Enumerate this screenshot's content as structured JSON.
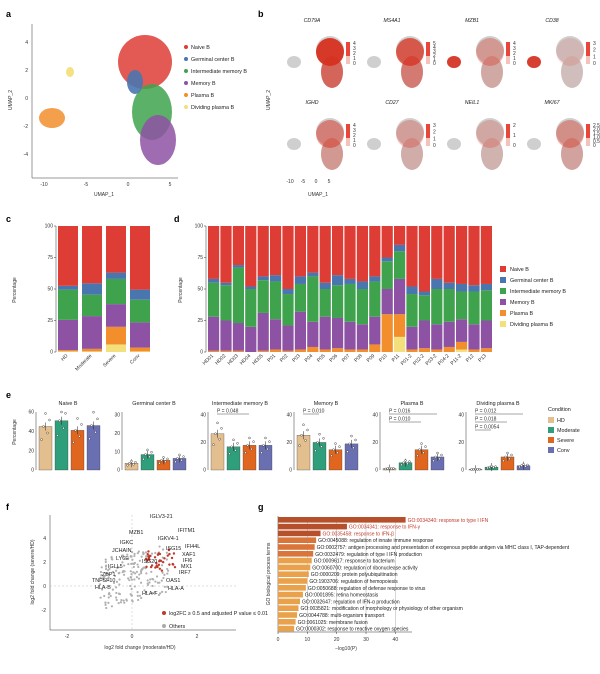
{
  "panel_labels": [
    "a",
    "b",
    "c",
    "d",
    "e",
    "f",
    "g"
  ],
  "colors": {
    "naive": "#dd3d35",
    "germinal": "#4a76b0",
    "intermediate": "#3fa34d",
    "memory": "#8e52a5",
    "plasma": "#f28e2b",
    "dividing": "#f3df7c",
    "hd": "#e3be8e",
    "moderate": "#2f9e7a",
    "severe": "#e0651f",
    "conv": "#6a6fb2",
    "go_red": "#c0392b"
  },
  "panel_a": {
    "xlabel": "UMAP_1",
    "ylabel": "UMAP_2",
    "xticks": [
      "-10",
      "-5",
      "0",
      "5"
    ],
    "yticks": [
      "4",
      "2",
      "0",
      "-2",
      "-4"
    ],
    "legend": [
      "Naive B",
      "Germinal center B",
      "Intermediate memory B",
      "Memory B",
      "Plasma B",
      "Dividing plasma B"
    ]
  },
  "panel_b": {
    "ylabel": "UMAP_2",
    "xlabel": "UMAP_1",
    "xticks": [
      "-10",
      "-5",
      "0",
      "5"
    ],
    "genes": [
      {
        "name": "CD79A",
        "scale": [
          "4",
          "3",
          "2",
          "1",
          "0"
        ]
      },
      {
        "name": "MS4A1",
        "scale": [
          "5",
          "4",
          "3",
          "2",
          "1",
          "0"
        ]
      },
      {
        "name": "MZB1",
        "scale": [
          "4",
          "3",
          "2",
          "1",
          "0"
        ]
      },
      {
        "name": "CD38",
        "scale": [
          "3",
          "2",
          "1",
          "0"
        ]
      },
      {
        "name": "IGHD",
        "scale": [
          "4",
          "3",
          "2",
          "1",
          "0"
        ]
      },
      {
        "name": "CD27",
        "scale": [
          "3",
          "2",
          "1",
          "0"
        ]
      },
      {
        "name": "NEIL1",
        "scale": [
          "2",
          "1",
          "0"
        ]
      },
      {
        "name": "MKI67",
        "scale": [
          "2.5",
          "2.0",
          "1.5",
          "1.0",
          "0.5",
          "0"
        ]
      }
    ]
  },
  "panel_c_chart": {
    "type": "bar",
    "ylabel": "Percentage",
    "yticks": [
      "0",
      "25",
      "50",
      "75",
      "100"
    ],
    "categories": [
      "HD",
      "Moderate",
      "Severe",
      "Conv"
    ]
  },
  "panel_d_chart": {
    "type": "bar",
    "ylabel": "Percentage",
    "yticks": [
      "0",
      "25",
      "50",
      "75",
      "100"
    ],
    "categories": [
      "HD01",
      "HD02",
      "HD03",
      "HD04",
      "HD05",
      "P01",
      "P02",
      "P03",
      "P04",
      "P05",
      "P06",
      "P07",
      "P08",
      "P09",
      "P10",
      "P11",
      "P01-2",
      "P02-2",
      "P03-2",
      "P04-2",
      "P11-2",
      "P12",
      "P13"
    ],
    "legend": [
      "Naive B",
      "Germinal center B",
      "Intermediate memory B",
      "Memory B",
      "Plasma B",
      "Dividing plasma B"
    ]
  },
  "panel_e": {
    "ylabel": "Percentage",
    "legend_title": "Condition",
    "legend": [
      "HD",
      "Moderate",
      "Severe",
      "Conv"
    ],
    "subplots": [
      {
        "title": "Naive B",
        "yticks": [
          "0",
          "20",
          "40",
          "60"
        ],
        "pvals": []
      },
      {
        "title": "Germinal center B",
        "yticks": [
          "0",
          "10",
          "20",
          "30"
        ],
        "pvals": []
      },
      {
        "title": "Intermediate memory B",
        "yticks": [
          "0",
          "20",
          "40"
        ],
        "pvals": [
          "P = 0.048"
        ]
      },
      {
        "title": "Memory B",
        "yticks": [
          "0",
          "20",
          "40"
        ],
        "pvals": [
          "P = 0.010"
        ]
      },
      {
        "title": "Plasma B",
        "yticks": [
          "0",
          "20",
          "40"
        ],
        "pvals": [
          "P = 0.016",
          "P = 0.010"
        ]
      },
      {
        "title": "Dividing plasma B",
        "yticks": [
          "0",
          "20",
          "40"
        ],
        "pvals": [
          "P = 0.012",
          "P = 0.018",
          "P = 0.0054"
        ]
      }
    ]
  },
  "panel_f_chart": {
    "type": "scatter",
    "xlabel": "log2 fold change (moderate/HD)",
    "ylabel": "log2 fold change (severe/HD)",
    "xticks": [
      "-2",
      "0",
      "2"
    ],
    "yticks": [
      "-2",
      "0",
      "2",
      "4"
    ],
    "legend": [
      "log2FC ≥ 0.5 and adjusted P value ≤ 0.01",
      "Others"
    ],
    "genes": [
      "IGLV3-21",
      "IFITM1",
      "MZB1",
      "IGKV4-1",
      "IGKC",
      "IFI44L",
      "ISG15",
      "JCHAIN",
      "XAF1",
      "LY6E",
      "IFI6",
      "ISG20",
      "MX1",
      "IGLL5",
      "IRF7",
      "ZBP1",
      "OAS1",
      "TNFSF10",
      "HLA-A",
      "HLA-B",
      "HLA-F"
    ]
  },
  "panel_g_chart": {
    "type": "bar",
    "ylabel": "GO biological process terms",
    "xlabel": "−log10(P)",
    "xticks": [
      "0",
      "10",
      "20",
      "30",
      "40"
    ],
    "terms": [
      {
        "term": "GO:0034340: response to type I IFN",
        "value": 43.5,
        "red": true
      },
      {
        "term": "GO:0034341: response to IFN-γ",
        "value": 23.5,
        "red": true
      },
      {
        "term": "GO:0035458: response to IFN-β",
        "value": 14.5,
        "red": true
      },
      {
        "term": "GO:0045088: regulation of innate immune response",
        "value": 13.0,
        "red": false
      },
      {
        "term": "GO:0002757: antigen processing and presentation of exogenous peptide antigen via MHC class I, TAP-dependent",
        "value": 12.5,
        "red": false
      },
      {
        "term": "GO:0032479: regulation of type I IFN production",
        "value": 12.0,
        "red": false
      },
      {
        "term": "GO:0009617: response to bacterium",
        "value": 11.5,
        "red": false
      },
      {
        "term": "GO:0060700: regulation of ribonuclease activity",
        "value": 11.0,
        "red": false
      },
      {
        "term": "GO:0000209: protein polyubiquitination",
        "value": 10.5,
        "red": false
      },
      {
        "term": "GO:1903706: regulation of hemopoiesis",
        "value": 10.0,
        "red": false
      },
      {
        "term": "GO:0050688: regulation of defense response to virus",
        "value": 9.5,
        "red": false
      },
      {
        "term": "GO:0001895: retina homeostasis",
        "value": 8.5,
        "red": false
      },
      {
        "term": "GO:0032647: regulation of IFN-α production",
        "value": 7.5,
        "red": false
      },
      {
        "term": "GO:0035821: modification of morphology or physiology of other organism",
        "value": 7.0,
        "red": false
      },
      {
        "term": "GO:0044788: multi-organism transport",
        "value": 6.5,
        "red": false
      },
      {
        "term": "GO:0061025: membrane fusion",
        "value": 6.0,
        "red": false
      },
      {
        "term": "GO:0000302: response to reactive oxygen species",
        "value": 5.5,
        "red": false
      }
    ]
  },
  "chart_data": [
    {
      "type": "bar",
      "title": "c",
      "ylabel": "Percentage",
      "ylim": [
        0,
        100
      ],
      "categories": [
        "HD",
        "Moderate",
        "Severe",
        "Conv"
      ],
      "series": [
        {
          "name": "Dividing plasma B",
          "values": [
            0.5,
            0.5,
            6,
            0.5
          ]
        },
        {
          "name": "Plasma B",
          "values": [
            1,
            2,
            14,
            3
          ]
        },
        {
          "name": "Memory B",
          "values": [
            24,
            26,
            18,
            20
          ]
        },
        {
          "name": "Intermediate memory B",
          "values": [
            24,
            17,
            20,
            18
          ]
        },
        {
          "name": "Germinal center B",
          "values": [
            3,
            9,
            5,
            8
          ]
        },
        {
          "name": "Naive B",
          "values": [
            47.5,
            45.5,
            37,
            50.5
          ]
        }
      ]
    },
    {
      "type": "bar",
      "title": "d",
      "ylabel": "Percentage",
      "ylim": [
        0,
        100
      ],
      "categories": [
        "HD01",
        "HD02",
        "HD03",
        "HD04",
        "HD05",
        "P01",
        "P02",
        "P03",
        "P04",
        "P05",
        "P06",
        "P07",
        "P08",
        "P09",
        "P10",
        "P11",
        "P01-2",
        "P02-2",
        "P03-2",
        "P04-2",
        "P11-2",
        "P12",
        "P13"
      ],
      "series": [
        {
          "name": "Dividing plasma B",
          "values": [
            0,
            0,
            0,
            0,
            0,
            0,
            0,
            0,
            0,
            0,
            0,
            0,
            0,
            0,
            0,
            12,
            0,
            0,
            0,
            0,
            2,
            0,
            0
          ]
        },
        {
          "name": "Plasma B",
          "values": [
            1,
            1,
            1,
            0,
            1,
            2,
            1,
            2,
            4,
            2,
            3,
            2,
            2,
            6,
            30,
            18,
            2,
            3,
            2,
            4,
            6,
            2,
            3
          ]
        },
        {
          "name": "Memory B",
          "values": [
            27,
            24,
            22,
            20,
            30,
            24,
            20,
            30,
            20,
            26,
            24,
            22,
            20,
            22,
            20,
            28,
            18,
            22,
            20,
            20,
            18,
            20,
            22
          ]
        },
        {
          "name": "Intermediate memory B",
          "values": [
            27,
            28,
            44,
            30,
            26,
            30,
            25,
            22,
            36,
            22,
            26,
            30,
            28,
            28,
            22,
            22,
            26,
            20,
            28,
            26,
            22,
            26,
            24
          ]
        },
        {
          "name": "Germinal center B",
          "values": [
            3,
            2,
            2,
            2,
            3,
            5,
            4,
            6,
            3,
            5,
            8,
            4,
            6,
            4,
            3,
            5,
            6,
            3,
            8,
            5,
            6,
            5,
            5
          ]
        },
        {
          "name": "Naive B",
          "values": [
            42,
            45,
            31,
            48,
            40,
            39,
            50,
            40,
            37,
            45,
            39,
            42,
            44,
            40,
            25,
            15,
            48,
            52,
            42,
            45,
            46,
            47,
            46
          ]
        }
      ]
    },
    {
      "type": "bar",
      "title": "e",
      "ylabel": "Percentage",
      "categories": [
        "HD",
        "Moderate",
        "Severe",
        "Conv"
      ],
      "series": [
        {
          "name": "Naive B",
          "values": [
            45,
            51,
            41,
            46
          ]
        },
        {
          "name": "Germinal center B",
          "values": [
            3.5,
            8,
            5,
            6
          ]
        },
        {
          "name": "Intermediate memory B",
          "values": [
            25,
            16,
            17,
            17
          ]
        },
        {
          "name": "Memory B",
          "values": [
            24,
            19,
            14,
            18
          ]
        },
        {
          "name": "Plasma B",
          "values": [
            1,
            5,
            14,
            9
          ]
        },
        {
          "name": "Dividing plasma B",
          "values": [
            0.5,
            2,
            9,
            3
          ]
        }
      ]
    },
    {
      "type": "bar",
      "title": "g",
      "xlabel": "−log10(P)",
      "ylabel": "GO biological process terms",
      "xlim": [
        0,
        45
      ],
      "categories": [
        "GO:0034340",
        "GO:0034341",
        "GO:0035458",
        "GO:0045088",
        "GO:0002757",
        "GO:0032479",
        "GO:0009617",
        "GO:0060700",
        "GO:0000209",
        "GO:1903706",
        "GO:0050688",
        "GO:0001895",
        "GO:0032647",
        "GO:0035821",
        "GO:0044788",
        "GO:0061025",
        "GO:0000302"
      ],
      "values": [
        43.5,
        23.5,
        14.5,
        13.0,
        12.5,
        12.0,
        11.5,
        11.0,
        10.5,
        10.0,
        9.5,
        8.5,
        7.5,
        7.0,
        6.5,
        6.0,
        5.5
      ]
    }
  ]
}
